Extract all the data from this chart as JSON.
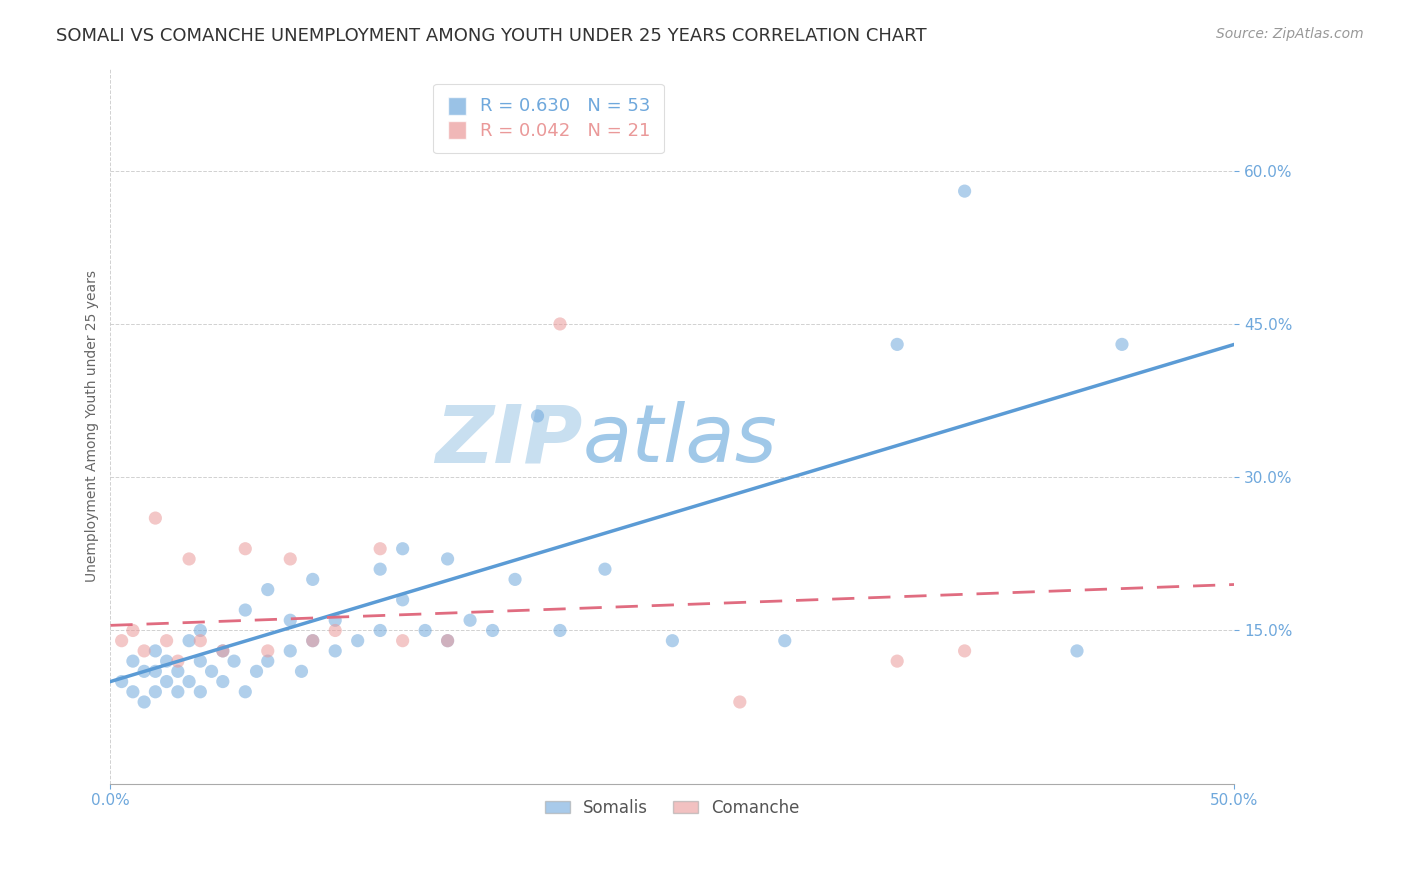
{
  "title": "SOMALI VS COMANCHE UNEMPLOYMENT AMONG YOUTH UNDER 25 YEARS CORRELATION CHART",
  "source": "Source: ZipAtlas.com",
  "ylabel": "Unemployment Among Youth under 25 years",
  "xlim": [
    0.0,
    0.5
  ],
  "ylim": [
    0.0,
    0.7
  ],
  "yticks": [
    0.15,
    0.3,
    0.45,
    0.6
  ],
  "xticks": [
    0.0,
    0.5
  ],
  "somali_color": "#6fa8dc",
  "comanche_color": "#ea9999",
  "somali_R": 0.63,
  "somali_N": 53,
  "comanche_R": 0.042,
  "comanche_N": 21,
  "somali_x": [
    0.005,
    0.01,
    0.01,
    0.015,
    0.015,
    0.02,
    0.02,
    0.02,
    0.025,
    0.025,
    0.03,
    0.03,
    0.035,
    0.035,
    0.04,
    0.04,
    0.04,
    0.045,
    0.05,
    0.05,
    0.055,
    0.06,
    0.06,
    0.065,
    0.07,
    0.07,
    0.08,
    0.08,
    0.085,
    0.09,
    0.09,
    0.1,
    0.1,
    0.11,
    0.12,
    0.12,
    0.13,
    0.13,
    0.14,
    0.15,
    0.15,
    0.16,
    0.17,
    0.18,
    0.19,
    0.2,
    0.22,
    0.25,
    0.3,
    0.35,
    0.38,
    0.43,
    0.45
  ],
  "somali_y": [
    0.1,
    0.09,
    0.12,
    0.08,
    0.11,
    0.09,
    0.11,
    0.13,
    0.1,
    0.12,
    0.09,
    0.11,
    0.1,
    0.14,
    0.09,
    0.12,
    0.15,
    0.11,
    0.13,
    0.1,
    0.12,
    0.09,
    0.17,
    0.11,
    0.12,
    0.19,
    0.13,
    0.16,
    0.11,
    0.14,
    0.2,
    0.13,
    0.16,
    0.14,
    0.15,
    0.21,
    0.18,
    0.23,
    0.15,
    0.14,
    0.22,
    0.16,
    0.15,
    0.2,
    0.36,
    0.15,
    0.21,
    0.14,
    0.14,
    0.43,
    0.58,
    0.13,
    0.43
  ],
  "comanche_x": [
    0.005,
    0.01,
    0.015,
    0.02,
    0.025,
    0.03,
    0.035,
    0.04,
    0.05,
    0.06,
    0.07,
    0.08,
    0.09,
    0.1,
    0.12,
    0.13,
    0.15,
    0.2,
    0.28,
    0.35,
    0.38
  ],
  "comanche_y": [
    0.14,
    0.15,
    0.13,
    0.26,
    0.14,
    0.12,
    0.22,
    0.14,
    0.13,
    0.23,
    0.13,
    0.22,
    0.14,
    0.15,
    0.23,
    0.14,
    0.14,
    0.45,
    0.08,
    0.12,
    0.13
  ],
  "watermark_zip": "ZIP",
  "watermark_atlas": "atlas",
  "watermark_color_zip": "#c8dff0",
  "watermark_color_atlas": "#a0c8e8",
  "somali_line_x": [
    0.0,
    0.5
  ],
  "somali_line_y": [
    0.1,
    0.43
  ],
  "comanche_line_x": [
    0.0,
    0.5
  ],
  "comanche_line_y": [
    0.155,
    0.195
  ],
  "background_color": "#ffffff",
  "grid_color": "#cccccc",
  "tick_color_blue": "#6fa8dc",
  "title_fontsize": 13,
  "axis_label_fontsize": 10,
  "tick_fontsize": 11,
  "legend_fontsize": 12,
  "source_fontsize": 10
}
